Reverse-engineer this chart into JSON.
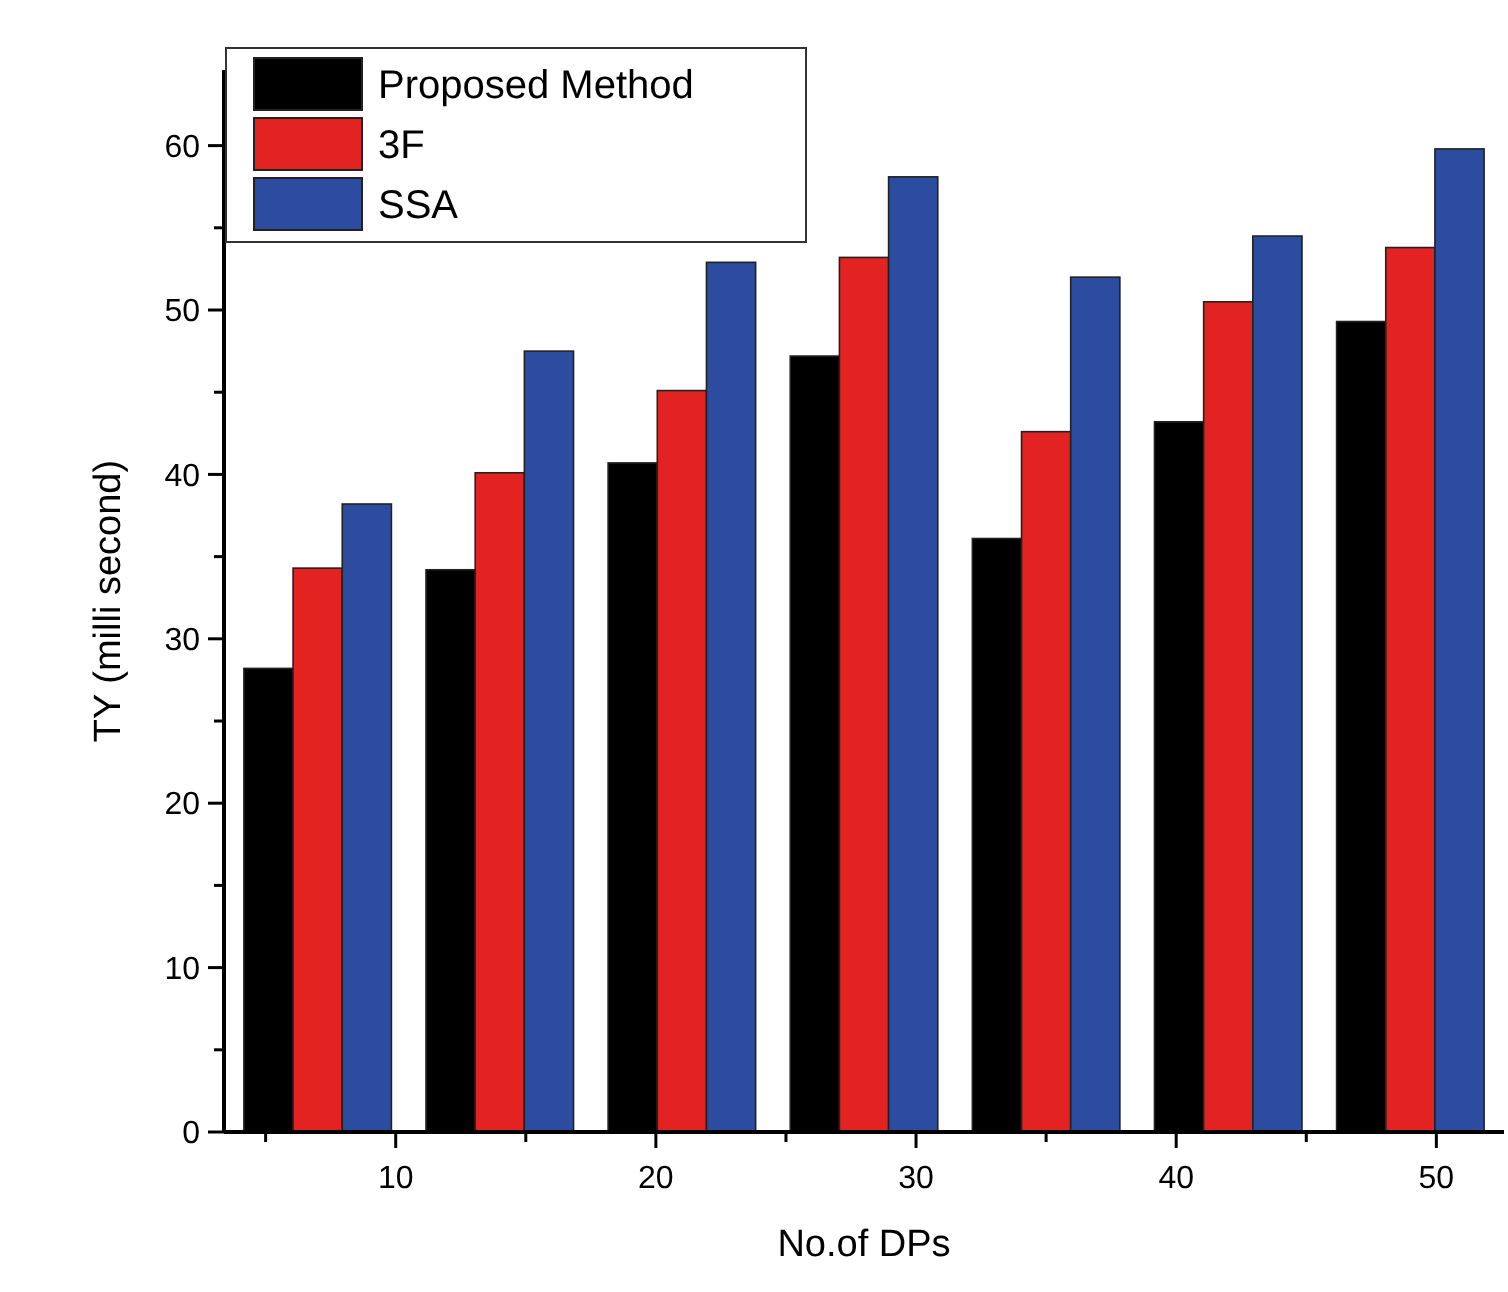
{
  "chart_data": {
    "type": "bar",
    "xlabel": "No.of DPs",
    "ylabel": "TY (milli second)",
    "x": [
      7,
      14,
      21,
      28,
      35,
      42,
      49
    ],
    "series": [
      {
        "name": "Proposed Method",
        "color": "#000000",
        "values": [
          28.2,
          34.2,
          40.7,
          47.2,
          36.1,
          43.2,
          49.3
        ]
      },
      {
        "name": "3F",
        "color": "#e32322",
        "values": [
          34.3,
          40.1,
          45.1,
          53.2,
          42.6,
          50.5,
          53.8
        ]
      },
      {
        "name": "SSA",
        "color": "#2b4c9f",
        "values": [
          38.2,
          47.5,
          52.9,
          58.1,
          52.0,
          54.5,
          59.8
        ]
      }
    ],
    "xlim": [
      3.4,
      52.6
    ],
    "ylim": [
      0,
      64.6
    ],
    "xticks": [
      {
        "value": 5,
        "label": null
      },
      10,
      {
        "value": 15,
        "label": null
      },
      20,
      {
        "value": 25,
        "label": null
      },
      30,
      {
        "value": 35,
        "label": null
      },
      40,
      {
        "value": 45,
        "label": null
      },
      50
    ],
    "yticks": [
      0,
      {
        "value": 5,
        "label": null
      },
      10,
      {
        "value": 15,
        "label": null
      },
      20,
      {
        "value": 25,
        "label": null
      },
      30,
      {
        "value": 35,
        "label": null
      },
      40,
      {
        "value": 45,
        "label": null
      },
      50,
      {
        "value": 55,
        "label": null
      },
      60
    ],
    "legend": "top left",
    "grid": false
  }
}
